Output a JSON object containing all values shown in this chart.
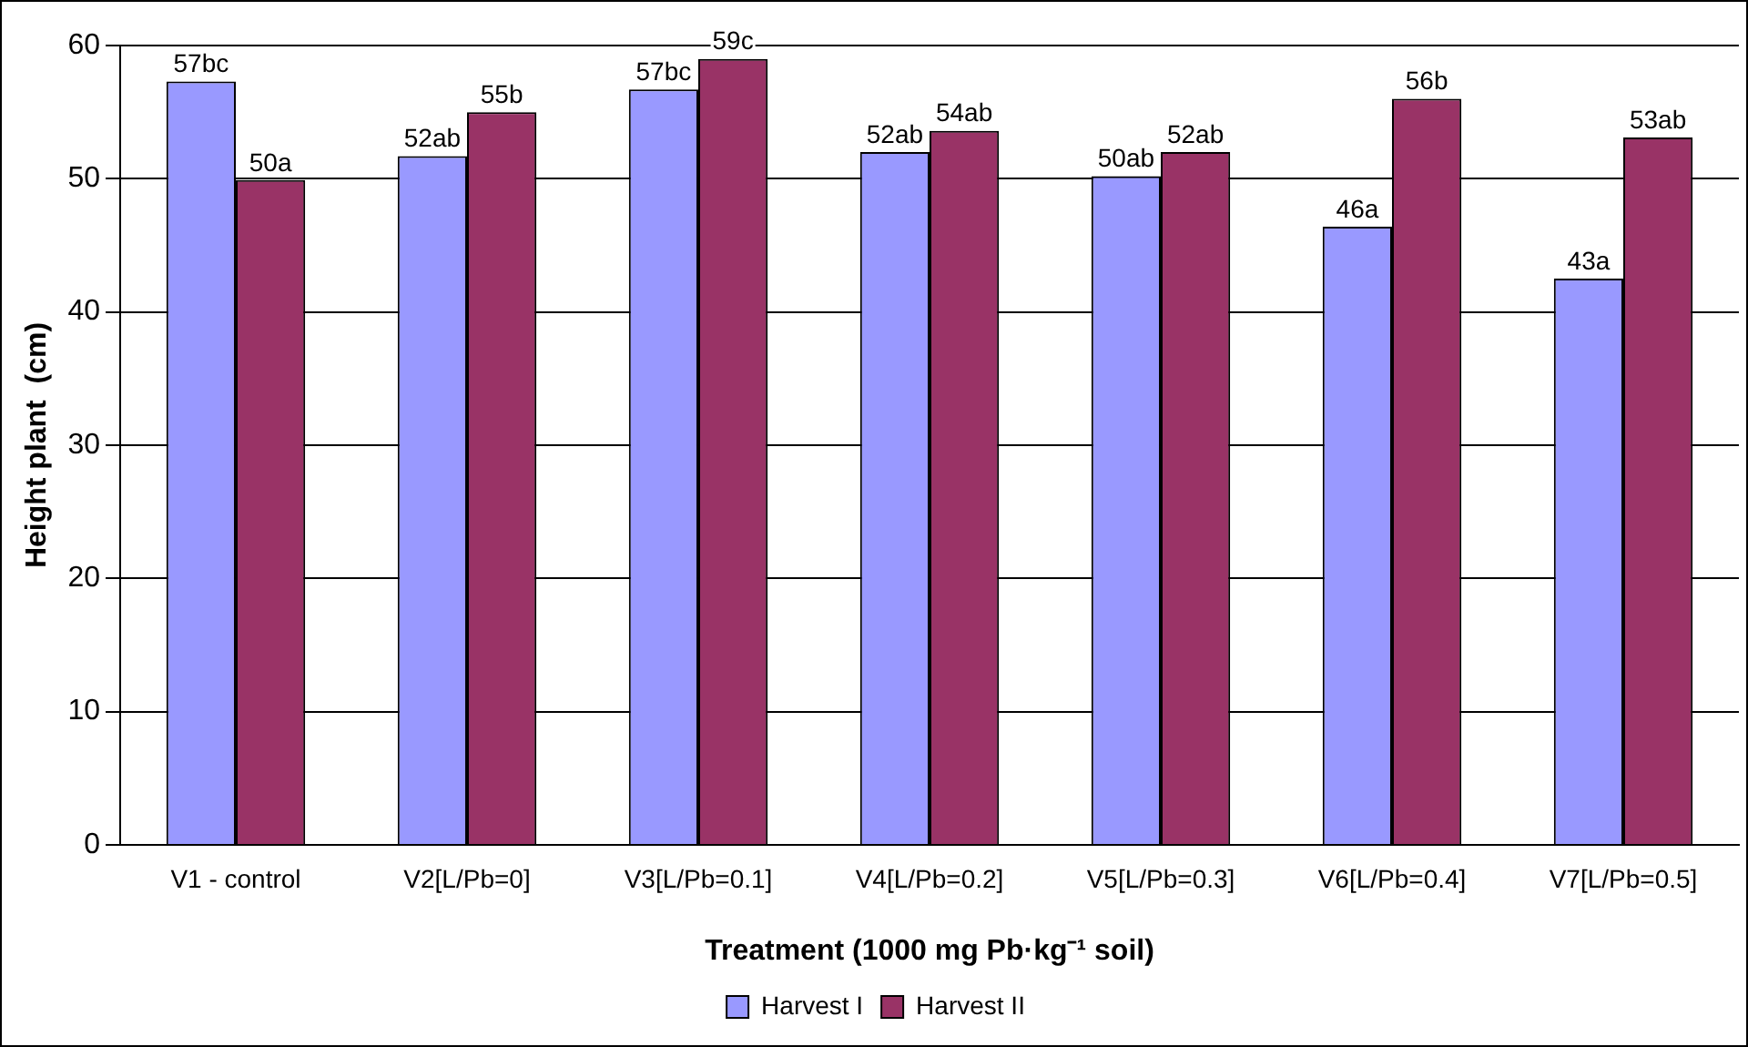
{
  "chart_data": {
    "type": "bar",
    "xlabel": "Treatment (1000 mg Pb·kg⁻¹ soil)",
    "ylabel": "Height plant  (cm)",
    "categories": [
      "V1 - control",
      "V2[L/Pb=0]",
      "V3[L/Pb=0.1]",
      "V4[L/Pb=0.2]",
      "V5[L/Pb=0.3]",
      "V6[L/Pb=0.4]",
      "V7[L/Pb=0.5]"
    ],
    "series": [
      {
        "name": "Harvest I",
        "color": "#9999ff",
        "values": [
          57.3,
          51.7,
          56.7,
          52,
          50.2,
          46.4,
          42.5
        ],
        "value_labels": [
          "57bc",
          "52ab",
          "57bc",
          "52ab",
          "50ab",
          "46a",
          "43a"
        ]
      },
      {
        "name": "Harvest II",
        "color": "#993366",
        "values": [
          49.9,
          55,
          59,
          53.6,
          52,
          56,
          53.1
        ],
        "value_labels": [
          "50a",
          "55b",
          "59c",
          "54ab",
          "52ab",
          "56b",
          "53ab"
        ]
      }
    ],
    "ylim": [
      0,
      60
    ],
    "yticks": [
      0,
      10,
      20,
      30,
      40,
      50,
      60
    ],
    "grid": "y",
    "legend": "bottom"
  }
}
